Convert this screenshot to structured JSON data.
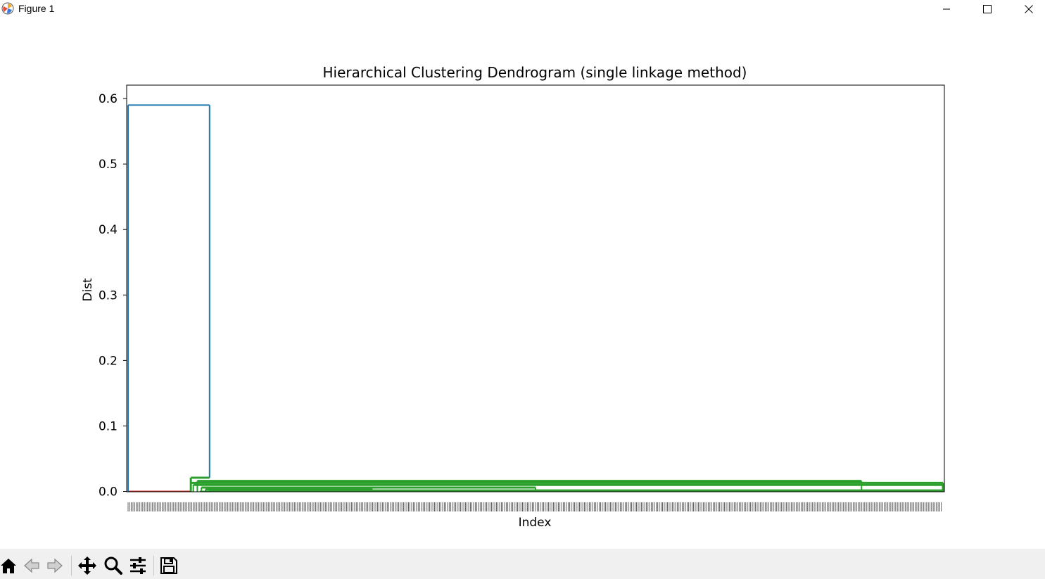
{
  "window": {
    "title": "Figure 1"
  },
  "toolbar": {
    "icons": [
      "home-icon",
      "back-arrow-icon",
      "forward-arrow-icon",
      "pan-icon",
      "zoom-icon",
      "configure-subplots-icon",
      "save-icon"
    ]
  },
  "colors": {
    "blue": "#1f77b4",
    "green": "#2ca02c",
    "red": "#d62728",
    "orange": "#ff7f0e"
  },
  "chart_data": {
    "type": "dendrogram",
    "title": "Hierarchical Clustering Dendrogram (single linkage method)",
    "xlabel": "Index",
    "ylabel": "Dist",
    "ylim": [
      -0.0005,
      0.6205
    ],
    "yticks": [
      "0.0",
      "0.1",
      "0.2",
      "0.3",
      "0.4",
      "0.5",
      "0.6"
    ],
    "ytick_values": [
      0.0,
      0.1,
      0.2,
      0.3,
      0.4,
      0.5,
      0.6
    ],
    "leaf_count": 1000,
    "root_merge_height": 0.59,
    "clusters": [
      {
        "color": "red",
        "leaf_range": [
          0,
          77
        ],
        "merge_height": 0.0005
      },
      {
        "color": "green",
        "leaf_range": [
          77,
          1000
        ],
        "merge_height": 0.021
      }
    ],
    "green_merge_levels": [
      {
        "x": [
          77,
          1000
        ],
        "y": 0.013
      },
      {
        "x": [
          80,
          1000
        ],
        "y": 0.01
      },
      {
        "x": [
          85,
          900
        ],
        "y": 0.016
      },
      {
        "x": [
          90,
          500
        ],
        "y": 0.006
      },
      {
        "x": [
          95,
          300
        ],
        "y": 0.003
      },
      {
        "x": [
          100,
          1000
        ],
        "y": 0.0015
      }
    ],
    "x_tick_labels": "dense, unreadable leaf index labels"
  }
}
